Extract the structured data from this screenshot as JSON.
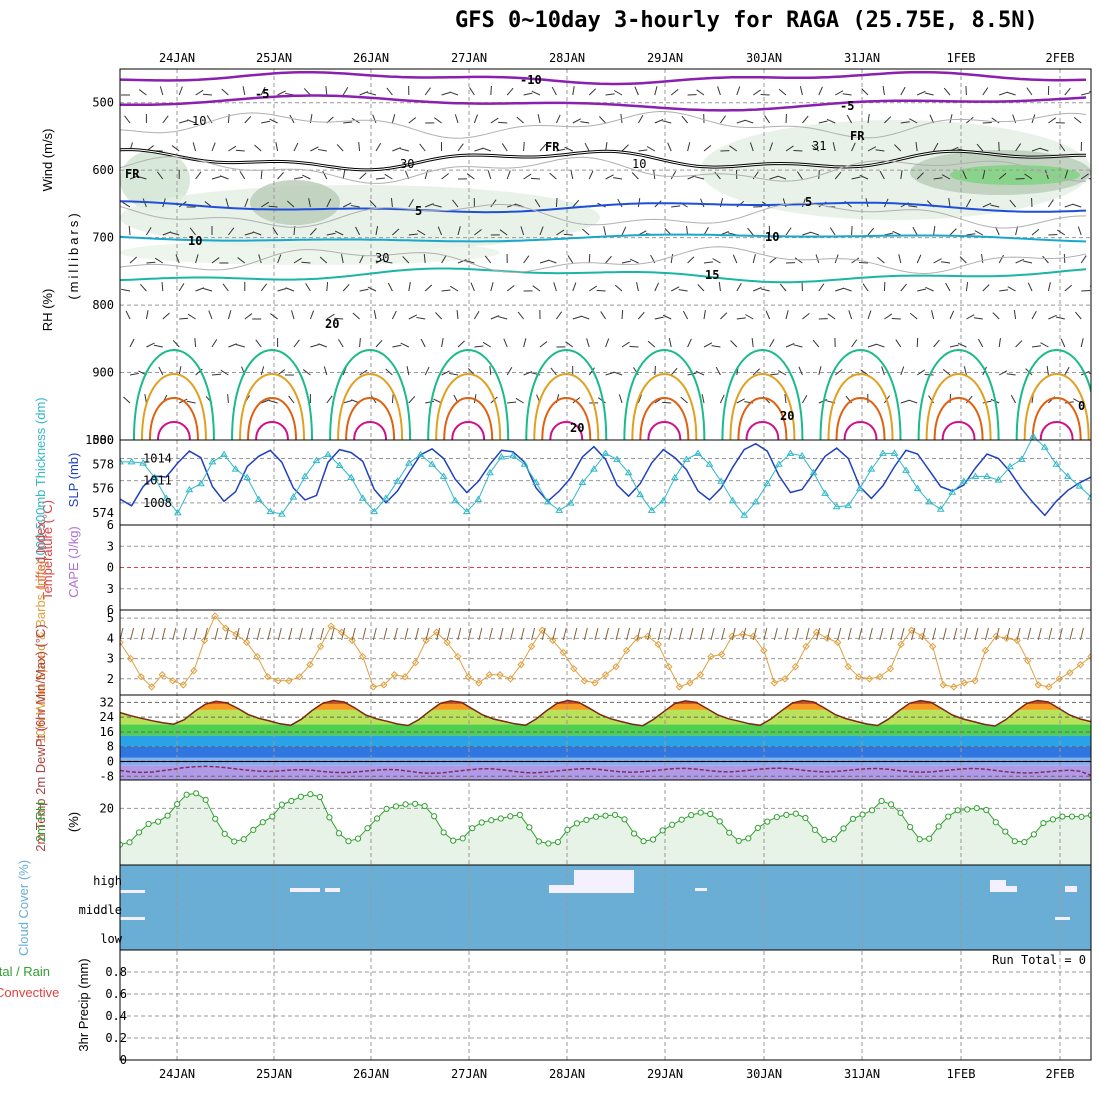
{
  "title": "GFS 0~10day 3-hourly for RAGA (25.75E, 8.5N)",
  "colors": {
    "grid": "#999999",
    "purple": "#8a1fb0",
    "blue": "#1f4fd8",
    "cyan": "#1aa7cc",
    "teal": "#19b5a5",
    "green": "#1aba8a",
    "orange": "#e0a020",
    "darkorange": "#e06010",
    "magenta": "#d0108a",
    "slp": "#2040c0",
    "thick": "#30b8c8",
    "wind10": "#e0a040",
    "rh2m": "#30a030",
    "cloud": "#6aaed6",
    "lifted": "#e04040"
  },
  "chart_data": [
    {
      "type": "line",
      "panel": "upper-air",
      "ylabel_parts": [
        "Wind (m/s)",
        "Temperature (°C)",
        "RH (%)"
      ],
      "ylabel_unit": "(millibars)",
      "dates_top": [
        "24JAN",
        "25JAN",
        "26JAN",
        "27JAN",
        "28JAN",
        "29JAN",
        "30JAN",
        "31JAN",
        "1FEB",
        "2FEB"
      ],
      "yticks": [
        500,
        600,
        700,
        800,
        900,
        1000
      ],
      "ylim": [
        450,
        1000
      ],
      "contour_labels": [
        "-10",
        "-5",
        "-5",
        "FR",
        "FR",
        "FR",
        "5",
        "5",
        "10",
        "10",
        "15",
        "20",
        "20",
        "20",
        "10",
        "10",
        "30",
        "30",
        "31",
        "0"
      ]
    },
    {
      "type": "line",
      "panel": "slp-thickness",
      "ylabel_left": "1000-500mb Thickness (dm)",
      "ylabel_right": "SLP (mb)",
      "yticks_left": [
        574,
        576,
        578,
        580
      ],
      "yticks_right": [
        1008,
        1011,
        1014
      ],
      "series": [
        {
          "name": "SLP (mb)",
          "values": [
            1008.5,
            1007.6,
            1010.2,
            1011.6,
            1011.5,
            1013.4,
            1015.0,
            1014.1,
            1010.2,
            1008.2,
            1009.5,
            1012.9,
            1014.3,
            1015.1,
            1013.5,
            1010.0,
            1008.4,
            1009.0,
            1013.5,
            1015.2,
            1014.8,
            1013.6,
            1009.8,
            1008.0,
            1009.6,
            1012.1,
            1014.5,
            1015.3,
            1014.0,
            1011.2,
            1009.4,
            1010.9,
            1013.2,
            1015.1,
            1014.9,
            1013.5,
            1010.0,
            1008.2,
            1009.6,
            1011.4,
            1014.2,
            1015.6,
            1013.9,
            1010.4,
            1008.9,
            1010.6,
            1013.4,
            1015.2,
            1014.1,
            1012.5,
            1009.6,
            1008.4,
            1010.0,
            1012.8,
            1015.2,
            1016.0,
            1015.0,
            1011.7,
            1009.4,
            1009.8,
            1012.0,
            1014.3,
            1015.4,
            1014.0,
            1010.2,
            1008.6,
            1010.3,
            1012.9,
            1015.1,
            1014.6,
            1012.4,
            1010.2,
            1009.6,
            1010.4,
            1012.7,
            1014.6,
            1014.0,
            1012.2,
            1009.9,
            1008.0,
            1006.3,
            1008.2,
            1009.7,
            1010.7,
            1011.5
          ]
        },
        {
          "name": "1000-500mb Thickness (dm)",
          "values": [
            578.2,
            578.2,
            578.1,
            576.9,
            575.2,
            574.0,
            575.9,
            576.4,
            578.2,
            578.8,
            577.6,
            576.9,
            575.1,
            574.1,
            573.9,
            575.3,
            577.0,
            578.3,
            578.8,
            577.9,
            576.9,
            575.2,
            574.1,
            575.2,
            576.6,
            578.1,
            578.8,
            578.0,
            577.0,
            575.0,
            574.1,
            575.1,
            577.3,
            578.6,
            578.7,
            578.0,
            576.5,
            574.9,
            574.2,
            574.8,
            576.5,
            577.6,
            578.9,
            578.4,
            577.3,
            575.5,
            574.2,
            575.0,
            576.9,
            578.4,
            578.9,
            578.0,
            576.6,
            575.0,
            573.8,
            574.9,
            576.4,
            578.0,
            578.9,
            578.7,
            577.3,
            575.6,
            574.5,
            574.6,
            576.0,
            577.6,
            578.9,
            578.9,
            577.5,
            576.0,
            574.9,
            574.3,
            575.7,
            576.6,
            577.0,
            577.0,
            576.7,
            577.8,
            578.4,
            580.3,
            579.4,
            578.0,
            577.0,
            576.2,
            575.3
          ]
        }
      ]
    },
    {
      "type": "line",
      "panel": "stability",
      "ylabel_left": "Lifted Index",
      "ylabel_right": "CAPE (J/kg)",
      "yticks": [
        -6,
        -3,
        0,
        3,
        6
      ],
      "series": [
        {
          "name": "Lifted Index",
          "values": [
            0
          ]
        }
      ]
    },
    {
      "type": "line",
      "panel": "wind10m",
      "ylabel": "10m Wind Speed & Barbs (m/s)",
      "yticks": [
        2,
        3,
        4,
        5
      ],
      "series": [
        {
          "name": "10m Wind Speed (m/s)",
          "values": [
            3.8,
            3.0,
            2.1,
            1.6,
            2.2,
            1.9,
            1.7,
            2.4,
            3.9,
            5.1,
            4.5,
            4.2,
            3.8,
            3.1,
            2.1,
            1.9,
            1.9,
            2.1,
            2.7,
            3.6,
            4.6,
            4.3,
            3.9,
            3.1,
            1.6,
            1.7,
            2.2,
            2.1,
            2.8,
            3.9,
            4.3,
            3.8,
            3.1,
            2.1,
            1.8,
            2.2,
            2.2,
            2.0,
            2.7,
            3.6,
            4.4,
            3.9,
            3.3,
            2.5,
            1.9,
            1.8,
            2.2,
            2.6,
            3.4,
            4.0,
            4.1,
            3.7,
            2.6,
            1.6,
            1.8,
            2.2,
            3.1,
            3.2,
            4.1,
            4.2,
            4.1,
            3.4,
            1.8,
            2.0,
            2.6,
            3.6,
            4.3,
            4.0,
            3.8,
            2.6,
            2.1,
            2.0,
            2.1,
            2.5,
            3.7,
            4.4,
            4.1,
            3.6,
            1.7,
            1.6,
            1.8,
            1.9,
            3.4,
            4.1,
            4.0,
            3.9,
            2.9,
            1.7,
            1.6,
            2.0,
            2.3,
            2.7,
            3.1
          ]
        }
      ]
    },
    {
      "type": "area",
      "panel": "temperature",
      "ylabel": "2m Temp 2m DewPt (6hr Min/Max) (°C)",
      "yticks": [
        -8,
        0,
        8,
        16,
        24,
        32
      ],
      "series": [
        {
          "name": "2m Temp",
          "values": [
            26.5,
            24.8,
            23.4,
            22.1,
            21.0,
            20.2,
            22.6,
            27.1,
            31.0,
            32.6,
            31.8,
            28.9,
            25.5,
            23.4,
            22.0,
            20.4,
            19.6,
            22.9,
            27.6,
            31.5,
            33.0,
            32.2,
            29.0,
            25.3,
            23.2,
            21.8,
            20.3,
            19.5,
            22.7,
            27.2,
            31.4,
            32.8,
            32.0,
            28.6,
            25.2,
            23.0,
            21.7,
            20.4,
            19.6,
            23.0,
            27.6,
            31.6,
            33.0,
            32.0,
            28.8,
            25.4,
            23.1,
            21.6,
            20.2,
            19.4,
            22.8,
            27.2,
            31.4,
            32.8,
            32.0,
            28.7,
            25.3,
            23.2,
            21.8,
            20.4,
            19.6,
            23.0,
            27.5,
            31.6,
            33.0,
            32.2,
            29.0,
            25.5,
            23.3,
            21.7,
            20.3,
            19.5,
            22.9,
            27.4,
            31.5,
            32.9,
            32.1,
            28.7,
            25.2,
            23.0,
            21.6,
            20.1,
            19.2,
            22.6,
            27.3,
            31.5,
            33.0,
            32.2,
            28.7,
            25.2,
            23.0,
            21.6
          ]
        },
        {
          "name": "2m DewPt",
          "values": [
            -4.8,
            -5.6,
            -5.9,
            -5.7,
            -4.9,
            -4.2,
            -3.3,
            -2.8,
            -2.6,
            -2.8,
            -3.4,
            -4.1,
            -4.7,
            -5.2,
            -5.4,
            -5.1,
            -4.6,
            -4.4,
            -4.7,
            -5.4,
            -5.9,
            -6.0,
            -5.7,
            -5.2,
            -4.7,
            -4.3,
            -4.5,
            -5.2,
            -6.0,
            -6.4,
            -6.2,
            -5.6,
            -4.9,
            -4.3,
            -3.9,
            -4.0,
            -4.6,
            -5.4,
            -6.0,
            -6.1,
            -5.7,
            -5.1,
            -4.5,
            -4.0,
            -3.9,
            -4.3,
            -5.0,
            -5.6,
            -5.8,
            -5.5,
            -4.9,
            -4.3,
            -3.8,
            -3.7,
            -4.1,
            -4.8,
            -5.4,
            -5.6,
            -5.3,
            -4.7,
            -4.1,
            -3.7,
            -3.6,
            -4.0,
            -4.7,
            -5.3,
            -5.6,
            -5.4,
            -4.9,
            -4.3,
            -3.9,
            -3.8,
            -4.2,
            -4.9,
            -5.5,
            -5.8,
            -5.6,
            -5.1,
            -4.5,
            -4.0,
            -3.8,
            -4.1,
            -4.8,
            -5.5,
            -6.0,
            -6.2,
            -6.0,
            -5.5,
            -5.0,
            -4.7,
            -5.3,
            -7.5
          ]
        }
      ]
    },
    {
      "type": "line",
      "panel": "rh2m",
      "ylabel": "2m RH",
      "unit": "(%)",
      "yticks": [
        20
      ],
      "series": [
        {
          "name": "2m RH",
          "values": [
            7.2,
            8.0,
            11.5,
            14.5,
            15.3,
            17.4,
            21.5,
            24.8,
            25.3,
            23.0,
            16.3,
            11.0,
            8.3,
            9.1,
            12.4,
            15.1,
            17.1,
            21.3,
            22.6,
            24.1,
            25.0,
            24.0,
            16.8,
            11.2,
            8.4,
            9.3,
            13.0,
            16.4,
            19.8,
            20.7,
            21.4,
            21.6,
            20.8,
            17.2,
            11.5,
            8.6,
            9.4,
            13.0,
            15.0,
            15.8,
            16.4,
            17.2,
            17.7,
            13.3,
            8.3,
            7.6,
            8.1,
            12.4,
            14.7,
            15.9,
            17.0,
            17.4,
            17.7,
            16.1,
            11.1,
            8.4,
            9.0,
            12.2,
            14.2,
            16.0,
            17.6,
            18.5,
            18.0,
            15.4,
            11.4,
            8.5,
            9.4,
            13.1,
            15.3,
            16.9,
            17.7,
            18.1,
            16.6,
            12.4,
            8.9,
            9.1,
            12.9,
            16.3,
            17.8,
            19.3,
            22.6,
            21.4,
            18.4,
            13.4,
            9.1,
            9.3,
            13.6,
            17.1,
            19.3,
            19.6,
            20.1,
            19.4,
            15.1,
            11.8,
            8.4,
            8.1,
            10.8,
            14.8,
            16.1,
            17.1,
            17.1,
            17.0,
            17.6
          ]
        }
      ]
    },
    {
      "type": "bar",
      "panel": "cloud",
      "ylabel": "Cloud Cover (%)",
      "levels": [
        "high",
        "middle",
        "low"
      ]
    },
    {
      "type": "bar",
      "panel": "precip",
      "ylabel_left": "Total / Rain",
      "ylabel_left2": "Convective",
      "ylabel": "3hr Precip (mm)",
      "annotation": "Run Total = 0",
      "yticks": [
        "0",
        "0.2",
        "0.4",
        "0.6",
        "0.8"
      ],
      "ylim": [
        0,
        1
      ],
      "dates_bottom": [
        "24JAN",
        "25JAN",
        "26JAN",
        "27JAN",
        "28JAN",
        "29JAN",
        "30JAN",
        "31JAN",
        "1FEB",
        "2FEB"
      ]
    }
  ]
}
